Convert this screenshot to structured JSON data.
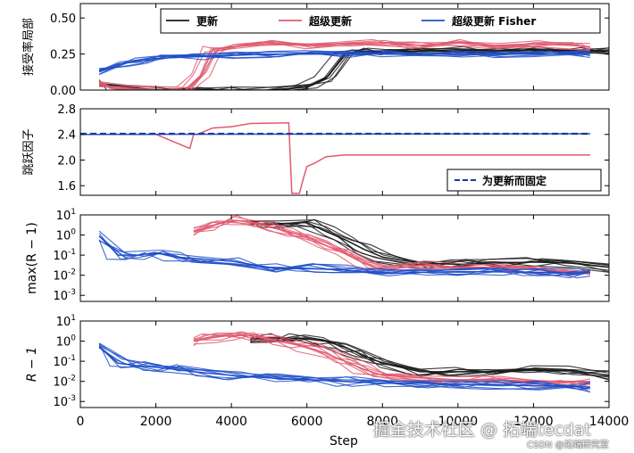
{
  "chart_data": [
    {
      "type": "line",
      "ylabel": "接受率局部",
      "ylim": [
        0,
        0.6
      ],
      "yticks": [
        "0.00",
        "0.25",
        "0.50"
      ],
      "legend": {
        "placement": "top",
        "entries": [
          "更新",
          "超级更新",
          "超级更新 Fisher"
        ]
      },
      "series": [
        {
          "name": "更新",
          "color": "#1a1a1a",
          "x": [
            500,
            1000,
            2000,
            3000,
            4000,
            5000,
            6000,
            6500,
            7000,
            7500,
            8000,
            9000,
            10000,
            11000,
            12000,
            13000,
            14000
          ],
          "values": [
            0.05,
            0.01,
            0.0,
            0.0,
            0.0,
            0.0,
            0.02,
            0.08,
            0.25,
            0.27,
            0.26,
            0.27,
            0.28,
            0.27,
            0.28,
            0.27,
            0.27
          ]
        },
        {
          "name": "超级更新",
          "color": "#e05a70",
          "x": [
            500,
            1000,
            2000,
            2800,
            3200,
            3500,
            4000,
            5000,
            6000,
            7000,
            8000,
            9000,
            10000,
            11000,
            12000,
            13000,
            13500
          ],
          "values": [
            0.04,
            0.01,
            0.0,
            0.0,
            0.1,
            0.28,
            0.3,
            0.32,
            0.31,
            0.32,
            0.33,
            0.31,
            0.33,
            0.31,
            0.32,
            0.31,
            0.3
          ]
        },
        {
          "name": "超级更新 Fisher",
          "color": "#1f4fc8",
          "x": [
            500,
            1000,
            1500,
            2000,
            3000,
            4000,
            5000,
            6000,
            7000,
            8000,
            9000,
            10000,
            11000,
            12000,
            13000,
            13500
          ],
          "values": [
            0.13,
            0.18,
            0.2,
            0.22,
            0.23,
            0.24,
            0.25,
            0.25,
            0.25,
            0.25,
            0.25,
            0.25,
            0.25,
            0.25,
            0.25,
            0.25
          ]
        }
      ]
    },
    {
      "type": "line",
      "ylabel": "跳跃因子",
      "ylim": [
        1.45,
        2.8
      ],
      "yticks": [
        "1.6",
        "2.0",
        "2.4",
        "2.8"
      ],
      "legend": {
        "placement": "bottom-right",
        "entries": [
          "为更新而固定"
        ]
      },
      "series": [
        {
          "name": "超级更新",
          "color": "#e05a70",
          "x": [
            0,
            500,
            2000,
            2900,
            3000,
            3100,
            3500,
            4000,
            4500,
            5500,
            5520,
            5600,
            5800,
            5900,
            6000,
            6200,
            6500,
            7000,
            8000,
            10000,
            12000,
            13000,
            13500
          ],
          "values": [
            2.4,
            2.4,
            2.4,
            2.18,
            2.4,
            2.4,
            2.5,
            2.52,
            2.57,
            2.58,
            2.58,
            1.48,
            1.48,
            1.7,
            1.9,
            1.95,
            2.05,
            2.08,
            2.08,
            2.08,
            2.08,
            2.08,
            2.08
          ]
        },
        {
          "name": "超级更新 Fisher",
          "color": "#1f4fc8",
          "x": [
            0,
            500,
            13000,
            13500
          ],
          "values": [
            2.4,
            2.4,
            2.41,
            2.41
          ]
        },
        {
          "name": "为更新而固定",
          "color": "#1a3a99",
          "dashed": true,
          "x": [
            0,
            13500
          ],
          "values": [
            2.41,
            2.41
          ]
        }
      ]
    },
    {
      "type": "line",
      "ylabel": "max(R − 1)",
      "yscale": "log",
      "ylim": [
        0.0005,
        10
      ],
      "yticks": [
        "10^-3",
        "10^-2",
        "10^-1",
        "10^0",
        "10^1"
      ],
      "series": [
        {
          "name": "更新",
          "color": "#1a1a1a",
          "x": [
            4500,
            5000,
            6000,
            6500,
            7000,
            7500,
            8000,
            9000,
            10000,
            11000,
            12000,
            13000,
            14000
          ],
          "values": [
            3.5,
            3.5,
            4.2,
            1.5,
            0.6,
            0.2,
            0.08,
            0.04,
            0.035,
            0.04,
            0.045,
            0.04,
            0.025
          ]
        },
        {
          "name": "超级更新",
          "color": "#e05a70",
          "x": [
            3000,
            3500,
            4000,
            4500,
            5000,
            5500,
            6000,
            6500,
            7000,
            7500,
            8000,
            9000,
            10000,
            11000,
            12000,
            13000,
            13500
          ],
          "values": [
            1.5,
            3.0,
            5.5,
            4.5,
            2.5,
            1.5,
            0.8,
            0.3,
            0.12,
            0.04,
            0.018,
            0.03,
            0.025,
            0.025,
            0.02,
            0.015,
            0.012
          ]
        },
        {
          "name": "超级更新 Fisher",
          "color": "#1f4fc8",
          "x": [
            500,
            1000,
            1500,
            2000,
            2500,
            3000,
            4000,
            5000,
            6000,
            7000,
            8000,
            9000,
            10000,
            11000,
            12000,
            13000,
            13500
          ],
          "values": [
            0.9,
            0.1,
            0.1,
            0.13,
            0.08,
            0.07,
            0.05,
            0.025,
            0.022,
            0.018,
            0.012,
            0.014,
            0.015,
            0.015,
            0.014,
            0.013,
            0.014
          ]
        }
      ]
    },
    {
      "type": "line",
      "ylabel": "R − 1",
      "yscale": "log",
      "xlabel": "Step",
      "xlim": [
        0,
        14000
      ],
      "xticks": [
        "0",
        "2000",
        "4000",
        "6000",
        "8000",
        "10000",
        "12000",
        "14000"
      ],
      "ylim": [
        0.0005,
        10
      ],
      "yticks": [
        "10^-3",
        "10^-2",
        "10^-1",
        "10^0",
        "10^1"
      ],
      "series": [
        {
          "name": "更新",
          "color": "#1a1a1a",
          "x": [
            4500,
            5000,
            5500,
            6000,
            6500,
            7000,
            7500,
            8000,
            9000,
            10000,
            11000,
            12000,
            13000,
            14000
          ],
          "values": [
            1.2,
            1.5,
            1.4,
            1.3,
            1.0,
            0.5,
            0.2,
            0.08,
            0.03,
            0.03,
            0.03,
            0.035,
            0.035,
            0.02
          ]
        },
        {
          "name": "超级更新",
          "color": "#e05a70",
          "x": [
            3000,
            3500,
            4000,
            4500,
            5000,
            5500,
            6000,
            6500,
            7000,
            7500,
            8000,
            9000,
            10000,
            11000,
            12000,
            13000,
            13500
          ],
          "values": [
            1.0,
            1.5,
            2.0,
            1.8,
            1.2,
            0.8,
            0.5,
            0.25,
            0.1,
            0.04,
            0.02,
            0.015,
            0.012,
            0.012,
            0.01,
            0.01,
            0.009
          ]
        },
        {
          "name": "超级更新 Fisher",
          "color": "#1f4fc8",
          "x": [
            500,
            1000,
            1500,
            2000,
            2500,
            3000,
            4000,
            5000,
            6000,
            7000,
            8000,
            9000,
            10000,
            11000,
            12000,
            13000,
            13500
          ],
          "values": [
            0.5,
            0.08,
            0.06,
            0.05,
            0.04,
            0.03,
            0.02,
            0.015,
            0.012,
            0.01,
            0.008,
            0.008,
            0.007,
            0.007,
            0.006,
            0.006,
            0.005
          ]
        }
      ]
    }
  ],
  "watermark": {
    "main": "掘金技术社区 @ 拓端tecdat",
    "sub": "CSDN @拓端研究室"
  }
}
